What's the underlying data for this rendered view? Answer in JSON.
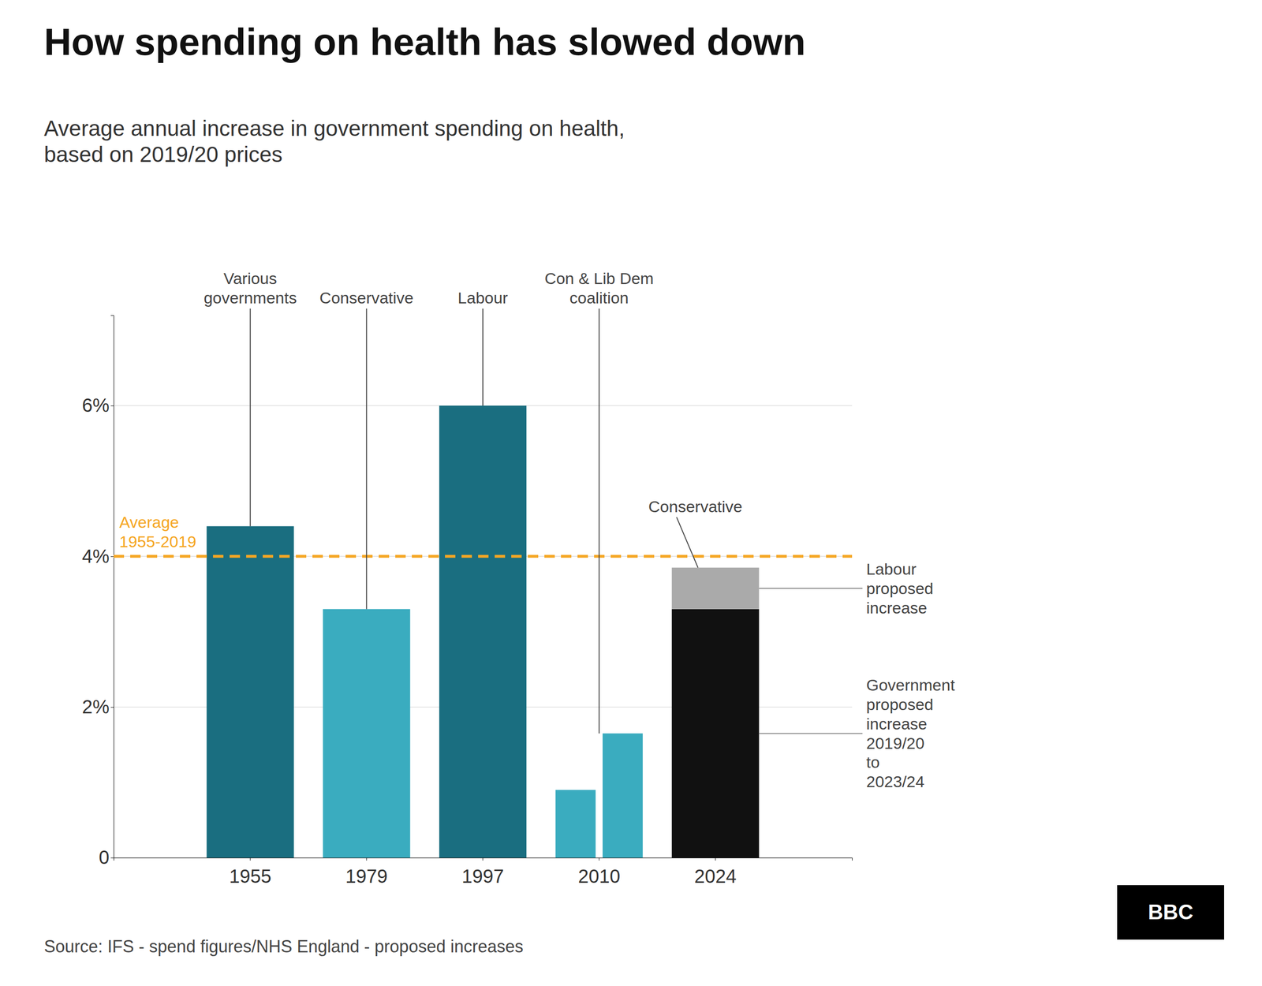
{
  "chart_data": {
    "type": "bar",
    "title": "How spending on health has slowed down",
    "subtitle": "Average annual increase in government spending on health,\nbased on 2019/20 prices",
    "source": "Source: IFS - spend figures/NHS England - proposed increases",
    "logo": "BBC",
    "categories": [
      "1955",
      "1979",
      "1997",
      "2010",
      "2024"
    ],
    "series": [
      {
        "values": [
          4.4,
          3.3,
          6.0,
          0.9,
          3.3
        ],
        "colors": [
          "#1a6e80",
          "#3aacbf",
          "#1a6e80",
          "#3aacbf",
          "#111111"
        ]
      },
      {
        "values": [
          null,
          null,
          null,
          1.65,
          null
        ],
        "color": "#3aacbf"
      },
      {
        "type": "stacked_bar",
        "values": [
          null,
          null,
          null,
          null,
          0.55
        ],
        "color": "#AAAAAA"
      }
    ],
    "ylim": [
      0,
      7.2
    ],
    "yticks": [
      0,
      {
        "value": 2,
        "label": "2%"
      },
      {
        "value": 4,
        "label": "4%"
      },
      {
        "value": 6,
        "label": "6%"
      }
    ],
    "grid": true,
    "reference_lines": [
      {
        "value": 4.0,
        "label": "Average\n1955-2019",
        "color": "#F5A623",
        "line_style": "dashed"
      }
    ],
    "annotations": [
      "Various\ngovernments",
      "Conservative",
      "Labour",
      "Con & Lib Dem\ncoalition",
      "Conservative",
      "Labour\nproposed\nincrease",
      "Government\nproposed\nincrease\n2019/20\nto\n2023/24"
    ]
  }
}
